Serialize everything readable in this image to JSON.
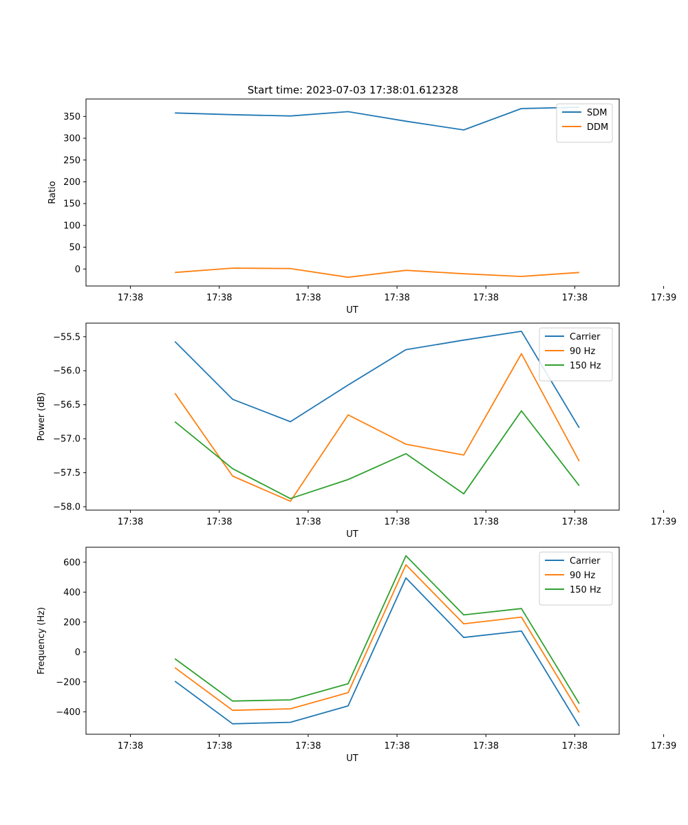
{
  "figure_title": "Start time: 2023-07-03 17:38:01.612328",
  "colors": {
    "blue": "#1f77b4",
    "orange": "#ff7f0e",
    "green": "#2ca02c"
  },
  "chart_data": [
    {
      "type": "line",
      "title": "Start time: 2023-07-03 17:38:01.612328",
      "xlabel": "UT",
      "ylabel": "Ratio",
      "x": [
        0.5,
        1.15,
        1.8,
        2.45,
        3.1,
        3.75,
        4.4,
        5.05
      ],
      "xlim": [
        -0.5,
        5.5
      ],
      "x_ticks": [
        0,
        1,
        2,
        3,
        4,
        5,
        6
      ],
      "x_tick_labels": [
        "17:38",
        "17:38",
        "17:38",
        "17:38",
        "17:38",
        "17:38",
        "17:39"
      ],
      "ylim": [
        -39,
        390
      ],
      "y_ticks": [
        0,
        50,
        100,
        150,
        200,
        250,
        300,
        350
      ],
      "y_tick_labels": [
        "0",
        "50",
        "100",
        "150",
        "200",
        "250",
        "300",
        "350"
      ],
      "legend_position": "top-right",
      "series": [
        {
          "name": "SDM",
          "color": "#1f77b4",
          "values": [
            358,
            354,
            351,
            361,
            339,
            319,
            368,
            371
          ]
        },
        {
          "name": "DDM",
          "color": "#ff7f0e",
          "values": [
            -8,
            2,
            1,
            -19,
            -3,
            -11,
            -17,
            -8
          ]
        }
      ]
    },
    {
      "type": "line",
      "title": "",
      "xlabel": "UT",
      "ylabel": "Power (dB)",
      "x": [
        0.5,
        1.15,
        1.8,
        2.45,
        3.1,
        3.75,
        4.4,
        5.05
      ],
      "xlim": [
        -0.5,
        5.5
      ],
      "x_ticks": [
        0,
        1,
        2,
        3,
        4,
        5,
        6
      ],
      "x_tick_labels": [
        "17:38",
        "17:38",
        "17:38",
        "17:38",
        "17:38",
        "17:38",
        "17:39"
      ],
      "ylim": [
        -58.05,
        -55.3
      ],
      "y_ticks": [
        -58.0,
        -57.5,
        -57.0,
        -56.5,
        -56.0,
        -55.5
      ],
      "y_tick_labels": [
        "−58.0",
        "−57.5",
        "−57.0",
        "−56.5",
        "−56.0",
        "−55.5"
      ],
      "legend_position": "top-right",
      "series": [
        {
          "name": "Carrier",
          "color": "#1f77b4",
          "values": [
            -55.57,
            -56.42,
            -56.75,
            -56.21,
            -55.69,
            -55.55,
            -55.42,
            -56.84
          ]
        },
        {
          "name": "90 Hz",
          "color": "#ff7f0e",
          "values": [
            -56.33,
            -57.55,
            -57.92,
            -56.65,
            -57.08,
            -57.24,
            -55.75,
            -57.33
          ]
        },
        {
          "name": "150 Hz",
          "color": "#2ca02c",
          "values": [
            -56.75,
            -57.44,
            -57.88,
            -57.6,
            -57.22,
            -57.81,
            -56.59,
            -57.69
          ]
        }
      ]
    },
    {
      "type": "line",
      "title": "",
      "xlabel": "UT",
      "ylabel": "Frequency (Hz)",
      "x": [
        0.5,
        1.15,
        1.8,
        2.45,
        3.1,
        3.75,
        4.4,
        5.05
      ],
      "xlim": [
        -0.5,
        5.5
      ],
      "x_ticks": [
        0,
        1,
        2,
        3,
        4,
        5,
        6
      ],
      "x_tick_labels": [
        "17:38",
        "17:38",
        "17:38",
        "17:38",
        "17:38",
        "17:38",
        "17:39"
      ],
      "ylim": [
        -550,
        700
      ],
      "y_ticks": [
        -400,
        -200,
        0,
        200,
        400,
        600
      ],
      "y_tick_labels": [
        "−400",
        "−200",
        "0",
        "200",
        "400",
        "600"
      ],
      "legend_position": "top-right",
      "series": [
        {
          "name": "Carrier",
          "color": "#1f77b4",
          "values": [
            -195,
            -480,
            -470,
            -360,
            495,
            97,
            140,
            -495
          ]
        },
        {
          "name": "90 Hz",
          "color": "#ff7f0e",
          "values": [
            -105,
            -390,
            -380,
            -272,
            583,
            188,
            233,
            -405
          ]
        },
        {
          "name": "150 Hz",
          "color": "#2ca02c",
          "values": [
            -45,
            -328,
            -320,
            -212,
            643,
            248,
            290,
            -345
          ]
        }
      ]
    }
  ]
}
